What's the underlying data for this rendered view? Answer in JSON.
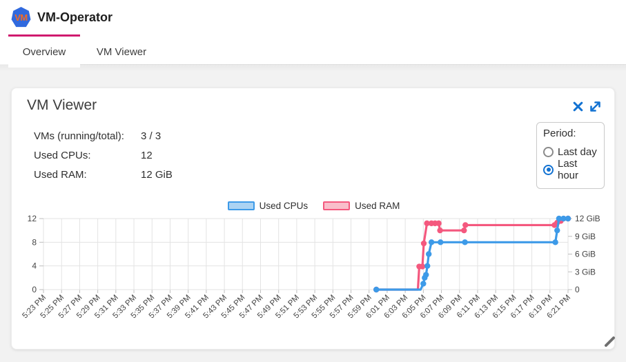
{
  "app": {
    "title": "VM-Operator",
    "logo_text": "VM"
  },
  "tabs": [
    {
      "label": "Overview",
      "active": true
    },
    {
      "label": "VM Viewer",
      "active": false
    }
  ],
  "card": {
    "title": "VM Viewer",
    "stats": [
      {
        "label": "VMs (running/total):",
        "value": "3 / 3"
      },
      {
        "label": "Used CPUs:",
        "value": "12"
      },
      {
        "label": "Used RAM:",
        "value": "12 GiB"
      }
    ],
    "period": {
      "label": "Period:",
      "options": [
        {
          "label": "Last day",
          "selected": false
        },
        {
          "label": "Last hour",
          "selected": true
        }
      ]
    }
  },
  "colors": {
    "accent_tab": "#d01a6e",
    "icon_blue": "#1272d2",
    "grid": "#e3e3e3",
    "axis_text": "#444444",
    "background": "#f2f2f2"
  },
  "chart_data": {
    "type": "line",
    "title": "",
    "legend_position": "top",
    "grid": true,
    "legend": [
      {
        "label": "Used CPUs",
        "color": "#3d9ae8",
        "fill": "#abd3f3"
      },
      {
        "label": "Used RAM",
        "color": "#f4587e",
        "fill": "#f9becb"
      }
    ],
    "x_ticks": [
      "5:23 PM",
      "5:25 PM",
      "5:27 PM",
      "5:29 PM",
      "5:31 PM",
      "5:33 PM",
      "5:35 PM",
      "5:37 PM",
      "5:39 PM",
      "5:41 PM",
      "5:43 PM",
      "5:45 PM",
      "5:47 PM",
      "5:49 PM",
      "5:51 PM",
      "5:53 PM",
      "5:55 PM",
      "5:57 PM",
      "5:59 PM",
      "6:01 PM",
      "6:03 PM",
      "6:05 PM",
      "6:07 PM",
      "6:09 PM",
      "6:11 PM",
      "6:13 PM",
      "6:15 PM",
      "6:17 PM",
      "6:19 PM",
      "6:21 PM"
    ],
    "x_range_minutes": [
      0,
      58
    ],
    "y_left": {
      "ticks": [
        0,
        4,
        8,
        12
      ],
      "max": 12
    },
    "y_right": {
      "ticks": [
        "0",
        "3 GiB",
        "6 GiB",
        "9 GiB",
        "12 GiB"
      ],
      "values": [
        0,
        3,
        6,
        9,
        12
      ],
      "max": 12
    },
    "series": [
      {
        "name": "Used RAM",
        "axis": "right",
        "color": "#f4587e",
        "points": [
          [
            36.8,
            0,
            1
          ],
          [
            41.4,
            0,
            0
          ],
          [
            41.55,
            3.9,
            1
          ],
          [
            41.9,
            3.9,
            1
          ],
          [
            42.05,
            7.8,
            1
          ],
          [
            42.4,
            11.2,
            1
          ],
          [
            42.9,
            11.2,
            1
          ],
          [
            43.3,
            11.2,
            1
          ],
          [
            43.7,
            11.2,
            1
          ],
          [
            43.85,
            10.0,
            1
          ],
          [
            46.5,
            10.0,
            1
          ],
          [
            46.65,
            10.9,
            1
          ],
          [
            56.5,
            10.9,
            1
          ],
          [
            56.8,
            11.3,
            1
          ],
          [
            57.2,
            11.6,
            1
          ],
          [
            58,
            12,
            1
          ]
        ]
      },
      {
        "name": "Used CPUs",
        "axis": "left",
        "color": "#3d9ae8",
        "points": [
          [
            36.8,
            0,
            1
          ],
          [
            41.7,
            0,
            0
          ],
          [
            42.0,
            1,
            1
          ],
          [
            42.15,
            2,
            1
          ],
          [
            42.3,
            2.5,
            1
          ],
          [
            42.45,
            4,
            1
          ],
          [
            42.6,
            6,
            1
          ],
          [
            42.9,
            8,
            1
          ],
          [
            43.9,
            8,
            1
          ],
          [
            46.6,
            8,
            1
          ],
          [
            56.6,
            8,
            1
          ],
          [
            56.8,
            10,
            1
          ],
          [
            57.0,
            12,
            1
          ],
          [
            57.5,
            12,
            1
          ],
          [
            58,
            12,
            1
          ]
        ]
      }
    ]
  }
}
